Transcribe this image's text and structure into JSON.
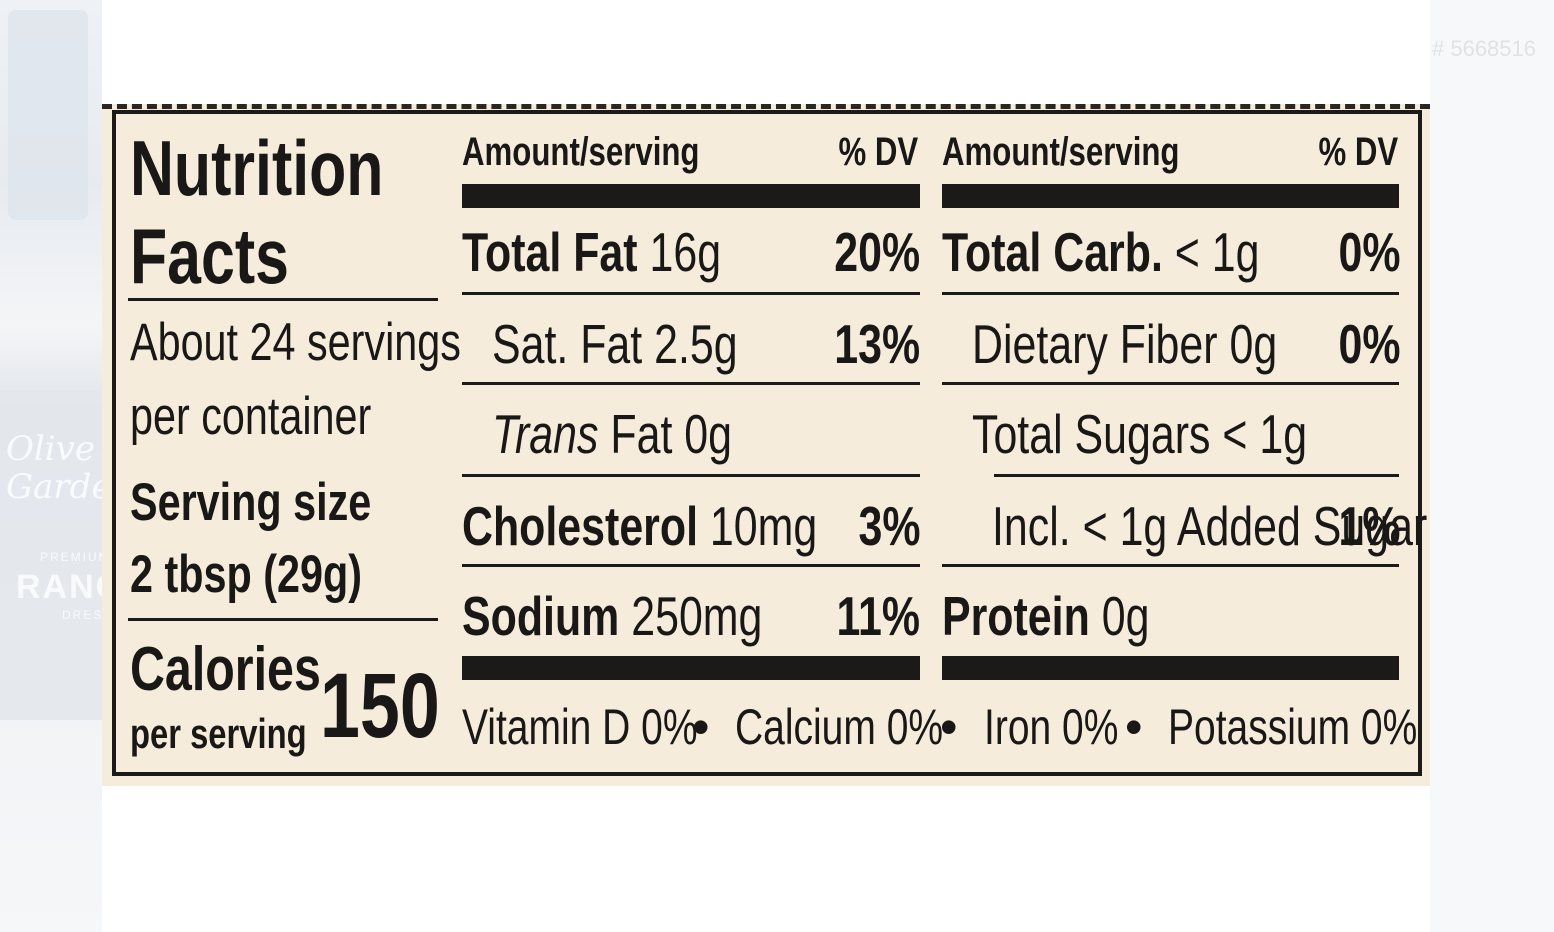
{
  "watermark": "# 5668516",
  "background_brand": {
    "line1": "Olive",
    "line2": "Garden",
    "sub1": "PREMIUM",
    "sub2": "RANCH",
    "sub3": "DRESSING"
  },
  "label": {
    "title_line1": "Nutrition",
    "title_line2": "Facts",
    "servings_line1": "About 24 servings",
    "servings_line2": "per container",
    "serving_size_label": "Serving size",
    "serving_size_value": "2 tbsp (29g)",
    "calories_label": "Calories",
    "calories_sub": "per serving",
    "calories_value": "150",
    "col_left": {
      "header_amount": "Amount/serving",
      "header_dv": "% DV",
      "rows": [
        {
          "name": "Total Fat",
          "amount": "16g",
          "dv": "20%"
        },
        {
          "name": "Sat. Fat 2.5g",
          "dv": "13%"
        },
        {
          "name": "Trans",
          "amount": "Fat 0g"
        },
        {
          "name": "Cholesterol",
          "amount": "10mg",
          "dv": "3%"
        },
        {
          "name": "Sodium",
          "amount": "250mg",
          "dv": "11%"
        }
      ]
    },
    "col_right": {
      "header_amount": "Amount/serving",
      "header_dv": "% DV",
      "rows": [
        {
          "name": "Total Carb.",
          "amount": "< 1g",
          "dv": "0%"
        },
        {
          "name": "Dietary Fiber 0g",
          "dv": "0%"
        },
        {
          "name": "Total Sugars < 1g"
        },
        {
          "name": "Incl. < 1g Added Sugar",
          "dv": "1%"
        },
        {
          "name": "Protein",
          "amount": "0g"
        }
      ]
    },
    "vitamins": {
      "vitamin_d": "Vitamin D 0%",
      "calcium": "Calcium 0%",
      "iron": "Iron 0%",
      "potassium": "Potassium 0%",
      "separator": "•"
    }
  }
}
